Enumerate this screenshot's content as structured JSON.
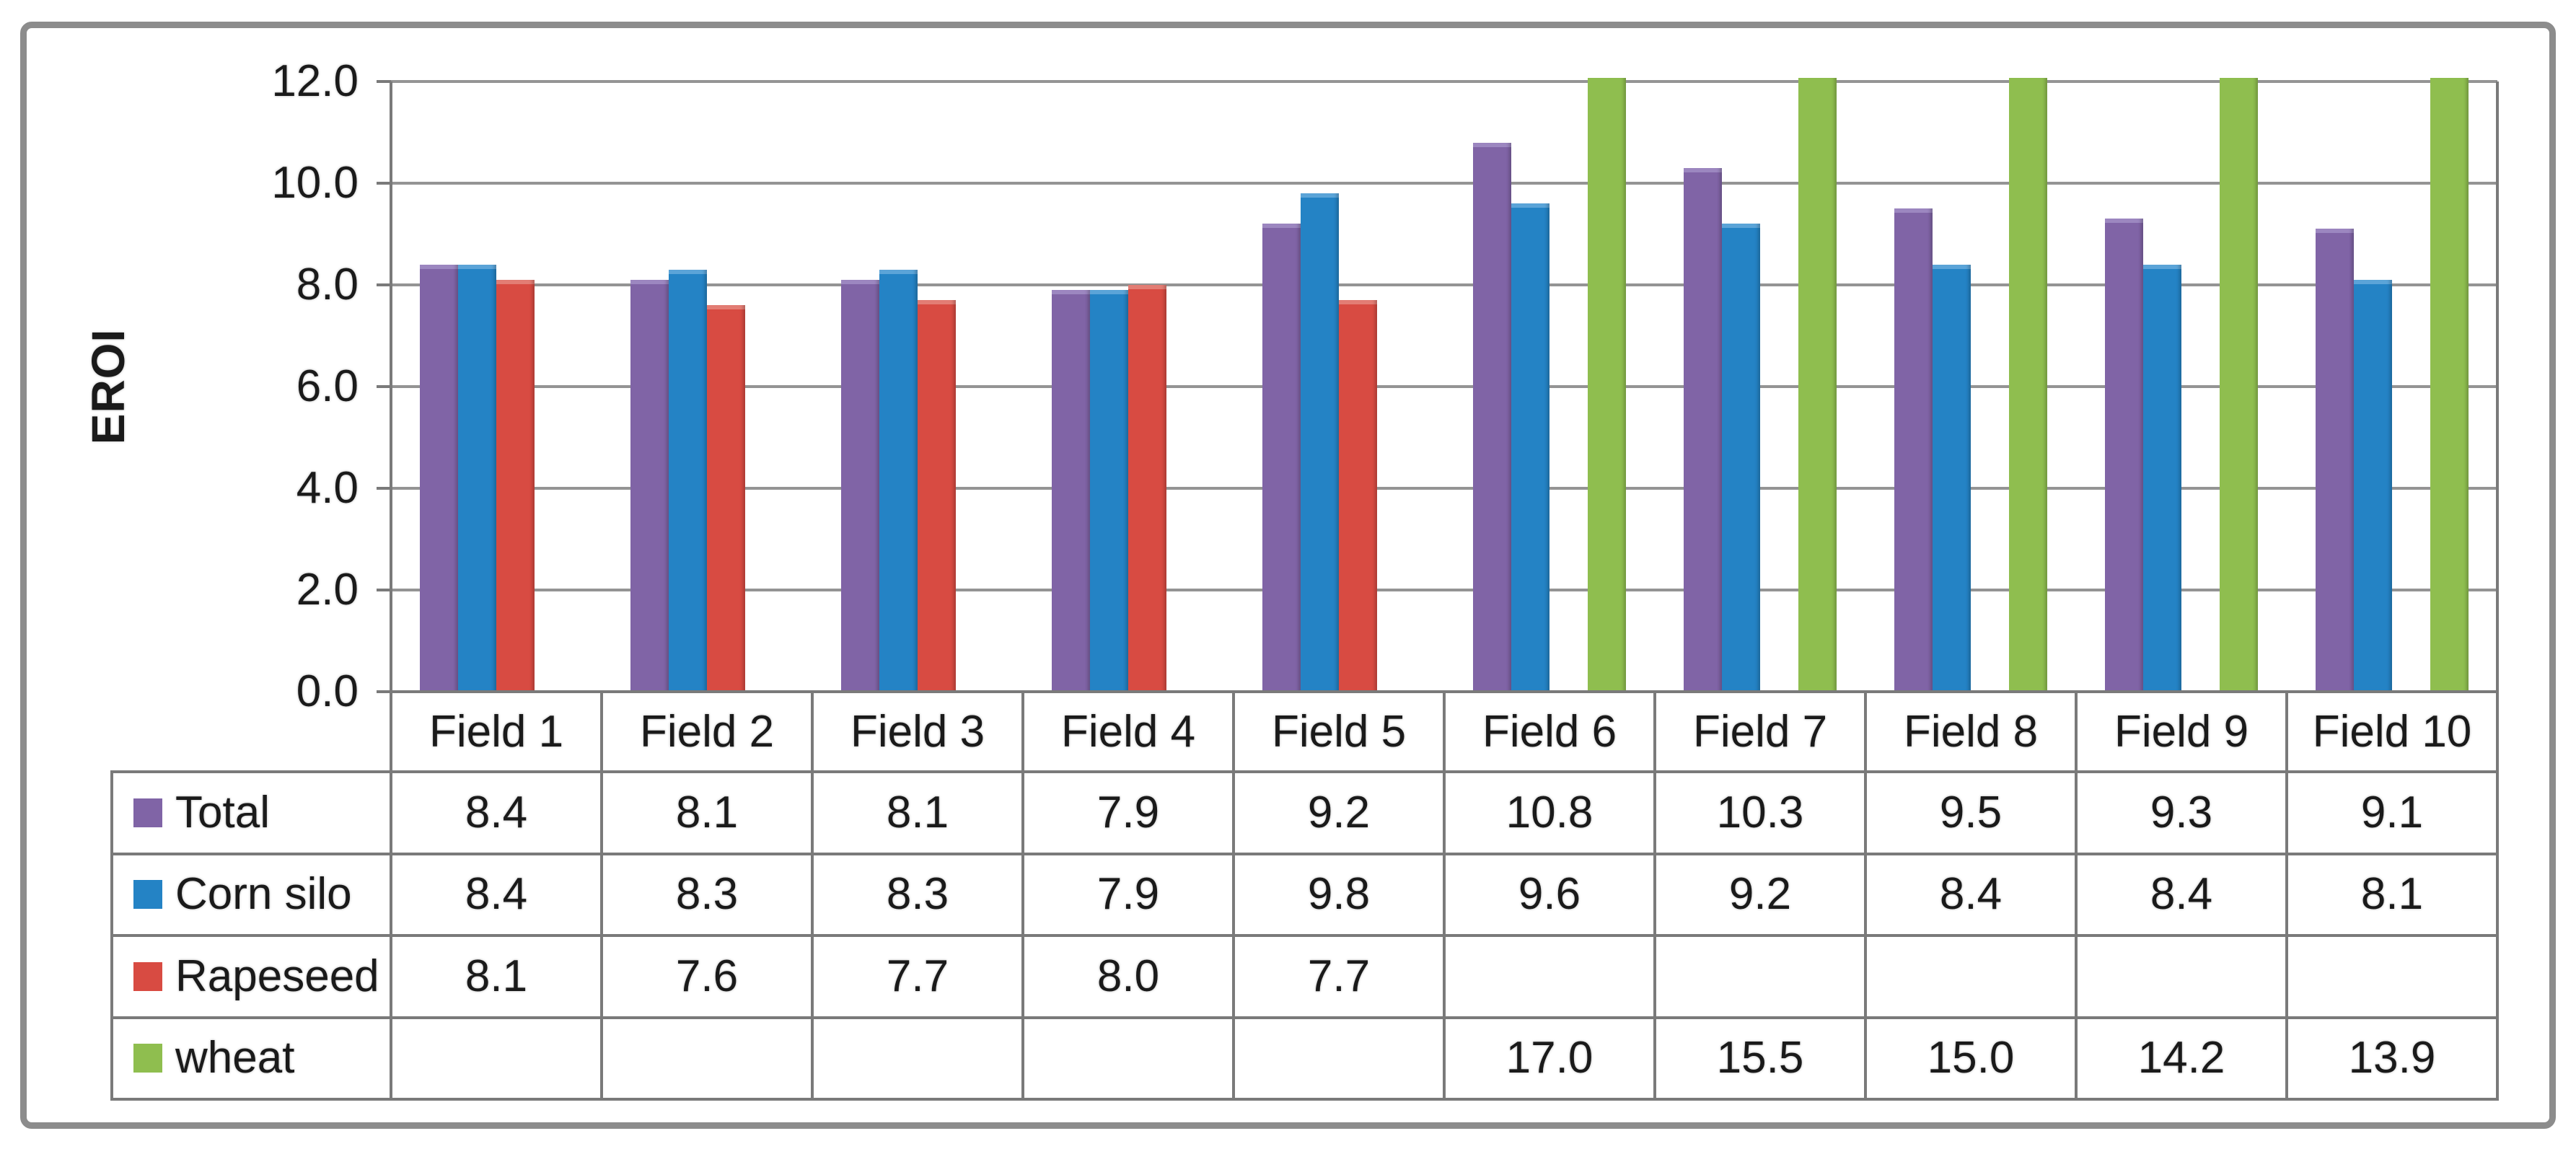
{
  "figure": {
    "y_axis_title": "EROI"
  },
  "colors": {
    "frame_border": "#8c8c8c",
    "gridline": "#949494",
    "table_border": "#7a7a7a",
    "text": "#1a1a1a",
    "background": "#ffffff",
    "series_total": "#8064a6",
    "series_corn_silo": "#2483c5",
    "series_rapeseed": "#d84b42",
    "series_wheat": "#8fbe4f"
  },
  "chart_data": {
    "type": "bar",
    "title": "",
    "xlabel": "",
    "ylabel": "EROI",
    "ylim": [
      0,
      12
    ],
    "ytick_step": 2,
    "ytick_decimals": 1,
    "grid": "horizontal",
    "legend_position": "data-table-left-column",
    "categories": [
      "Field 1",
      "Field 2",
      "Field 3",
      "Field 4",
      "Field 5",
      "Field 6",
      "Field 7",
      "Field 8",
      "Field 9",
      "Field 10"
    ],
    "series": [
      {
        "name": "Total",
        "color": "#8064a6",
        "cap_color": "#9c87c0",
        "values": [
          8.4,
          8.1,
          8.1,
          7.9,
          9.2,
          10.8,
          10.3,
          9.5,
          9.3,
          9.1
        ]
      },
      {
        "name": "Corn silo",
        "color": "#2483c5",
        "cap_color": "#5ba4d8",
        "values": [
          8.4,
          8.3,
          8.3,
          7.9,
          9.8,
          9.6,
          9.2,
          8.4,
          8.4,
          8.1
        ]
      },
      {
        "name": "Rapeseed",
        "color": "#d84b42",
        "cap_color": "#e37d74",
        "values": [
          8.1,
          7.6,
          7.7,
          8.0,
          7.7,
          null,
          null,
          null,
          null,
          null
        ]
      },
      {
        "name": "wheat",
        "color": "#8fbe4f",
        "cap_color": "#aed17b",
        "values": [
          null,
          null,
          null,
          null,
          null,
          17.0,
          15.5,
          15.0,
          14.2,
          13.9
        ]
      }
    ],
    "value_decimals": 1,
    "notes": "wheat bars exceed the y-axis maximum of 12.0 and are clipped at the top of the plot area"
  }
}
